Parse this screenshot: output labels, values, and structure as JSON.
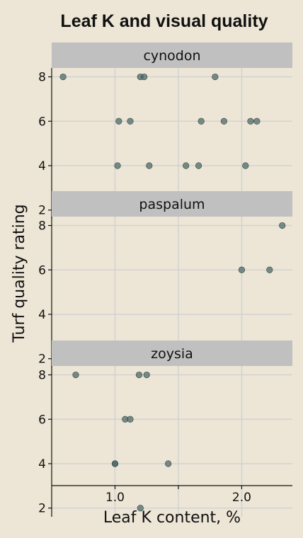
{
  "chart_data": {
    "type": "scatter",
    "title": "Leaf K and visual quality",
    "xlabel": "Leaf K content, %",
    "ylabel": "Turf quality rating",
    "xlim": [
      0.5,
      2.4
    ],
    "ylim": [
      1.8,
      8.4
    ],
    "x_ticks": [
      1.0,
      1.5,
      2.0
    ],
    "x_tick_labels": [
      "1.0",
      "",
      "2.0"
    ],
    "y_ticks": [
      2,
      4,
      6,
      8
    ],
    "y_tick_labels": [
      "2",
      "4",
      "6",
      "8"
    ],
    "grid": true,
    "point_color": "#4a6664",
    "panels": [
      {
        "label": "cynodon",
        "points": [
          {
            "x": 0.59,
            "y": 8
          },
          {
            "x": 1.2,
            "y": 8
          },
          {
            "x": 1.23,
            "y": 8
          },
          {
            "x": 1.79,
            "y": 8
          },
          {
            "x": 1.03,
            "y": 6
          },
          {
            "x": 1.12,
            "y": 6
          },
          {
            "x": 1.68,
            "y": 6
          },
          {
            "x": 1.86,
            "y": 6
          },
          {
            "x": 2.07,
            "y": 6
          },
          {
            "x": 2.12,
            "y": 6
          },
          {
            "x": 1.02,
            "y": 4
          },
          {
            "x": 1.27,
            "y": 4
          },
          {
            "x": 1.56,
            "y": 4
          },
          {
            "x": 1.66,
            "y": 4
          },
          {
            "x": 2.03,
            "y": 4
          }
        ]
      },
      {
        "label": "paspalum",
        "points": [
          {
            "x": 2.32,
            "y": 8
          },
          {
            "x": 2.0,
            "y": 6
          },
          {
            "x": 2.22,
            "y": 6
          }
        ]
      },
      {
        "label": "zoysia",
        "points": [
          {
            "x": 0.69,
            "y": 8
          },
          {
            "x": 1.19,
            "y": 8
          },
          {
            "x": 1.25,
            "y": 8
          },
          {
            "x": 1.08,
            "y": 6
          },
          {
            "x": 1.12,
            "y": 6
          },
          {
            "x": 1.0,
            "y": 4
          },
          {
            "x": 1.0,
            "y": 4
          },
          {
            "x": 1.42,
            "y": 4
          },
          {
            "x": 1.2,
            "y": 2
          }
        ]
      }
    ]
  }
}
